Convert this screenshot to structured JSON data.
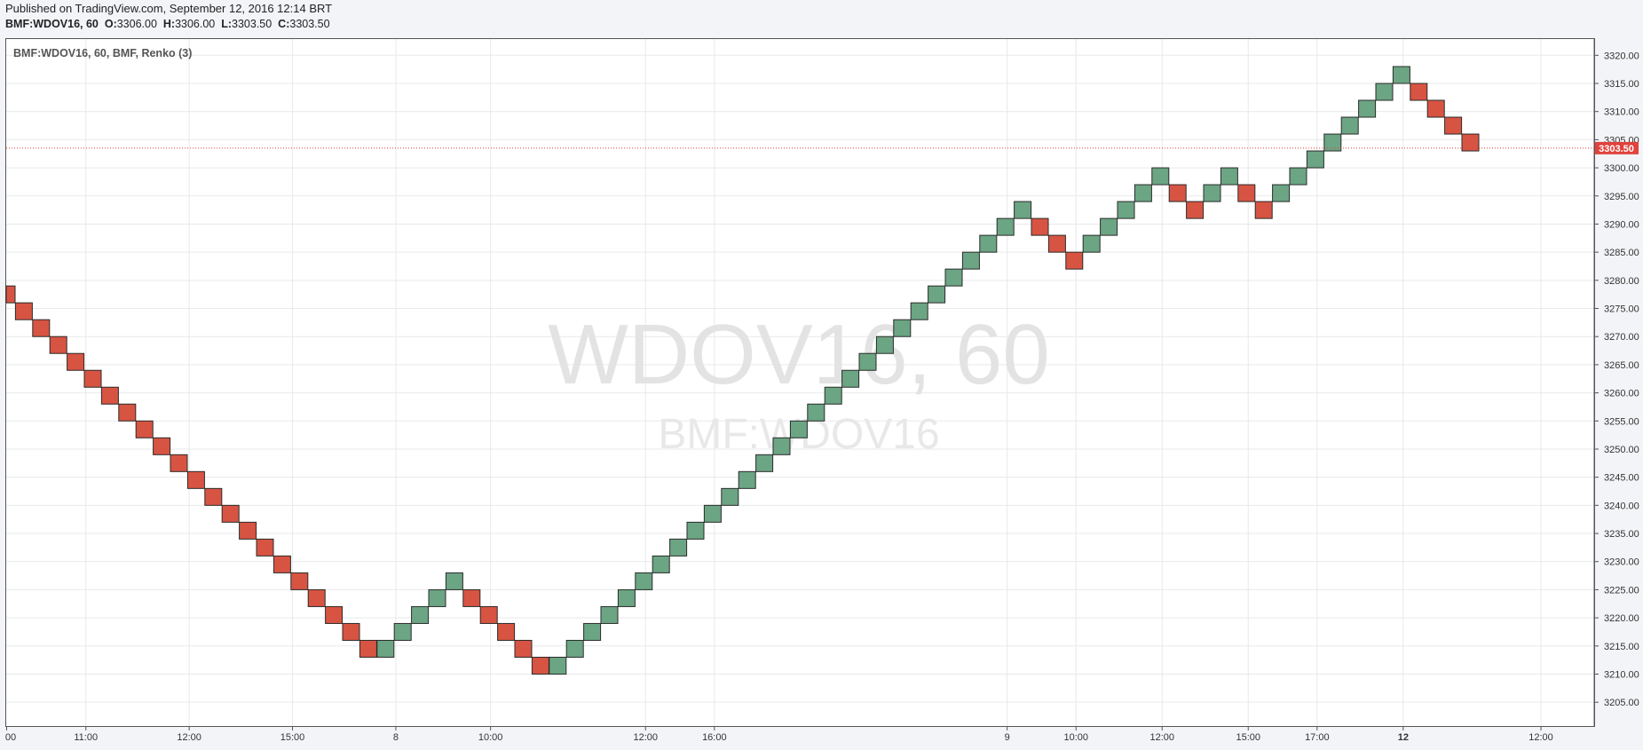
{
  "header": {
    "published": "Published on TradingView.com, September 12, 2016 12:14 BRT",
    "symbol_interval": "BMF:WDOV16, 60",
    "open_label": "O:",
    "open": "3306.00",
    "high_label": "H:",
    "high": "3306.00",
    "low_label": "L:",
    "low": "3303.50",
    "close_label": "C:",
    "close": "3303.50"
  },
  "legend": "BMF:WDOV16, 60, BMF, Renko (3)",
  "watermark": {
    "main": "WDOV16, 60",
    "sub": "BMF:WDOV16"
  },
  "colors": {
    "up": "#6ba583",
    "down": "#d75442",
    "last_price": "#e0433d",
    "grid": "#e7e9ec"
  },
  "chart_data": {
    "type": "renko",
    "box_size": 3,
    "ylim": [
      3200.5,
      3323.0
    ],
    "y_ticks": [
      "3205.00",
      "3210.00",
      "3215.00",
      "3220.00",
      "3225.00",
      "3230.00",
      "3235.00",
      "3240.00",
      "3245.00",
      "3250.00",
      "3255.00",
      "3260.00",
      "3265.00",
      "3270.00",
      "3275.00",
      "3280.00",
      "3285.00",
      "3290.00",
      "3295.00",
      "3300.00",
      "3305.00",
      "3310.00",
      "3315.00",
      "3320.00"
    ],
    "x_ticks": [
      {
        "label": "00",
        "index": 0,
        "bold": false
      },
      {
        "label": "11:00",
        "index": 4.6,
        "bold": false
      },
      {
        "label": "12:00",
        "index": 10.6,
        "bold": false
      },
      {
        "label": "15:00",
        "index": 16.6,
        "bold": false
      },
      {
        "label": "8",
        "index": 22.6,
        "bold": false
      },
      {
        "label": "10:00",
        "index": 28.1,
        "bold": false
      },
      {
        "label": "12:00",
        "index": 37.1,
        "bold": false
      },
      {
        "label": "16:00",
        "index": 41.1,
        "bold": false
      },
      {
        "label": "9",
        "index": 58.1,
        "bold": false
      },
      {
        "label": "10:00",
        "index": 62.1,
        "bold": false
      },
      {
        "label": "12:00",
        "index": 67.1,
        "bold": false
      },
      {
        "label": "15:00",
        "index": 72.1,
        "bold": false
      },
      {
        "label": "17:00",
        "index": 76.1,
        "bold": false
      },
      {
        "label": "12",
        "index": 81.1,
        "bold": true
      },
      {
        "label": "12:00",
        "index": 89.1,
        "bold": false
      }
    ],
    "bricks": [
      {
        "o": 3279.0,
        "c": 3276.0
      },
      {
        "o": 3276.0,
        "c": 3273.0
      },
      {
        "o": 3273.0,
        "c": 3270.0
      },
      {
        "o": 3270.0,
        "c": 3267.0
      },
      {
        "o": 3267.0,
        "c": 3264.0
      },
      {
        "o": 3264.0,
        "c": 3261.0
      },
      {
        "o": 3261.0,
        "c": 3258.0
      },
      {
        "o": 3258.0,
        "c": 3255.0
      },
      {
        "o": 3255.0,
        "c": 3252.0
      },
      {
        "o": 3252.0,
        "c": 3249.0
      },
      {
        "o": 3249.0,
        "c": 3246.0
      },
      {
        "o": 3246.0,
        "c": 3243.0
      },
      {
        "o": 3243.0,
        "c": 3240.0
      },
      {
        "o": 3240.0,
        "c": 3237.0
      },
      {
        "o": 3237.0,
        "c": 3234.0
      },
      {
        "o": 3234.0,
        "c": 3231.0
      },
      {
        "o": 3231.0,
        "c": 3228.0
      },
      {
        "o": 3228.0,
        "c": 3225.0
      },
      {
        "o": 3225.0,
        "c": 3222.0
      },
      {
        "o": 3222.0,
        "c": 3219.0
      },
      {
        "o": 3219.0,
        "c": 3216.0
      },
      {
        "o": 3216.0,
        "c": 3213.0
      },
      {
        "o": 3213.0,
        "c": 3216.0
      },
      {
        "o": 3216.0,
        "c": 3219.0
      },
      {
        "o": 3219.0,
        "c": 3222.0
      },
      {
        "o": 3222.0,
        "c": 3225.0
      },
      {
        "o": 3225.0,
        "c": 3228.0
      },
      {
        "o": 3225.0,
        "c": 3222.0
      },
      {
        "o": 3222.0,
        "c": 3219.0
      },
      {
        "o": 3219.0,
        "c": 3216.0
      },
      {
        "o": 3216.0,
        "c": 3213.0
      },
      {
        "o": 3213.0,
        "c": 3210.0
      },
      {
        "o": 3210.0,
        "c": 3213.0
      },
      {
        "o": 3213.0,
        "c": 3216.0
      },
      {
        "o": 3216.0,
        "c": 3219.0
      },
      {
        "o": 3219.0,
        "c": 3222.0
      },
      {
        "o": 3222.0,
        "c": 3225.0
      },
      {
        "o": 3225.0,
        "c": 3228.0
      },
      {
        "o": 3228.0,
        "c": 3231.0
      },
      {
        "o": 3231.0,
        "c": 3234.0
      },
      {
        "o": 3234.0,
        "c": 3237.0
      },
      {
        "o": 3237.0,
        "c": 3240.0
      },
      {
        "o": 3240.0,
        "c": 3243.0
      },
      {
        "o": 3243.0,
        "c": 3246.0
      },
      {
        "o": 3246.0,
        "c": 3249.0
      },
      {
        "o": 3249.0,
        "c": 3252.0
      },
      {
        "o": 3252.0,
        "c": 3255.0
      },
      {
        "o": 3255.0,
        "c": 3258.0
      },
      {
        "o": 3258.0,
        "c": 3261.0
      },
      {
        "o": 3261.0,
        "c": 3264.0
      },
      {
        "o": 3264.0,
        "c": 3267.0
      },
      {
        "o": 3267.0,
        "c": 3270.0
      },
      {
        "o": 3270.0,
        "c": 3273.0
      },
      {
        "o": 3273.0,
        "c": 3276.0
      },
      {
        "o": 3276.0,
        "c": 3279.0
      },
      {
        "o": 3279.0,
        "c": 3282.0
      },
      {
        "o": 3282.0,
        "c": 3285.0
      },
      {
        "o": 3285.0,
        "c": 3288.0
      },
      {
        "o": 3288.0,
        "c": 3291.0
      },
      {
        "o": 3291.0,
        "c": 3294.0
      },
      {
        "o": 3291.0,
        "c": 3288.0
      },
      {
        "o": 3288.0,
        "c": 3285.0
      },
      {
        "o": 3285.0,
        "c": 3282.0
      },
      {
        "o": 3285.0,
        "c": 3288.0
      },
      {
        "o": 3288.0,
        "c": 3291.0
      },
      {
        "o": 3291.0,
        "c": 3294.0
      },
      {
        "o": 3294.0,
        "c": 3297.0
      },
      {
        "o": 3297.0,
        "c": 3300.0
      },
      {
        "o": 3297.0,
        "c": 3294.0
      },
      {
        "o": 3294.0,
        "c": 3291.0
      },
      {
        "o": 3294.0,
        "c": 3297.0
      },
      {
        "o": 3297.0,
        "c": 3300.0
      },
      {
        "o": 3297.0,
        "c": 3294.0
      },
      {
        "o": 3294.0,
        "c": 3291.0
      },
      {
        "o": 3294.0,
        "c": 3297.0
      },
      {
        "o": 3297.0,
        "c": 3300.0
      },
      {
        "o": 3300.0,
        "c": 3303.0
      },
      {
        "o": 3303.0,
        "c": 3306.0
      },
      {
        "o": 3306.0,
        "c": 3309.0
      },
      {
        "o": 3309.0,
        "c": 3312.0
      },
      {
        "o": 3312.0,
        "c": 3315.0
      },
      {
        "o": 3315.0,
        "c": 3318.0
      },
      {
        "o": 3315.0,
        "c": 3312.0
      },
      {
        "o": 3312.0,
        "c": 3309.0
      },
      {
        "o": 3309.0,
        "c": 3306.0
      },
      {
        "o": 3306.0,
        "c": 3303.0
      }
    ],
    "last_price": 3303.5,
    "last_price_label": "3303.50",
    "grid": true
  }
}
